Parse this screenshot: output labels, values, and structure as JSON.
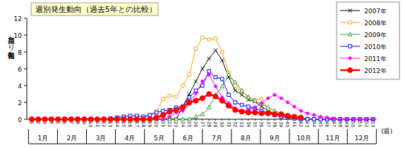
{
  "chart_data": {
    "type": "line",
    "title": "週別発生動向（過去5年との比較）",
    "y_label": "定点当たり報告数",
    "x_label": "(週)",
    "month_labels": [
      "1月",
      "2月",
      "3月",
      "4月",
      "5月",
      "6月",
      "7月",
      "8月",
      "9月",
      "10月",
      "11月",
      "12月"
    ],
    "categories": [
      "1",
      "2",
      "3",
      "4",
      "5",
      "6",
      "7",
      "8",
      "9",
      "10",
      "11",
      "12",
      "13",
      "14",
      "15",
      "16",
      "17",
      "18",
      "19",
      "20",
      "21",
      "22",
      "23",
      "24",
      "25",
      "26",
      "27",
      "28",
      "29",
      "30",
      "31",
      "32",
      "33",
      "34",
      "35",
      "36",
      "37",
      "38",
      "39",
      "40",
      "41",
      "42",
      "43",
      "44",
      "45",
      "46",
      "47",
      "48",
      "49",
      "50",
      "51",
      "52",
      "53"
    ],
    "ylim": [
      0,
      12
    ],
    "yticks": [
      0,
      2,
      4,
      6,
      8,
      10,
      12
    ],
    "grid": false,
    "legend": "upper right",
    "series": [
      {
        "name": "2007年",
        "color": "#000000",
        "marker": "x",
        "values": [
          0,
          0,
          0,
          0,
          0,
          0,
          0,
          0,
          0,
          0,
          0,
          0,
          0,
          0,
          0,
          0,
          0,
          0,
          0,
          0,
          0,
          0,
          0,
          1.5,
          3.0,
          4.5,
          6.0,
          7.2,
          8.2,
          7.0,
          5.0,
          3.4,
          2.9,
          2.3,
          2.1,
          1.5,
          1.0,
          0.6,
          0.4,
          0.2,
          0.1,
          0,
          0,
          0,
          0,
          0,
          0,
          0,
          0,
          0,
          0,
          0,
          0
        ]
      },
      {
        "name": "2008年",
        "color": "#ff9900",
        "marker": "circle-open",
        "values": [
          0,
          0,
          0,
          0,
          0,
          0,
          0,
          0,
          0,
          0,
          0,
          0,
          0,
          0,
          0,
          0,
          0,
          0.2,
          0.5,
          1.0,
          2.4,
          2.8,
          2.7,
          4.0,
          5.3,
          8.4,
          9.7,
          9.5,
          9.6,
          8.0,
          5.5,
          4.0,
          3.3,
          2.6,
          2.3,
          2.4,
          1.2,
          0.6,
          0.3,
          0.2,
          0.1,
          0,
          0,
          0,
          0,
          0,
          0,
          0,
          0,
          0,
          0,
          0,
          0
        ]
      },
      {
        "name": "2009年",
        "color": "#339933",
        "marker": "triangle-open",
        "values": [
          0,
          0,
          0,
          0,
          0,
          0,
          0,
          0,
          0,
          0,
          0,
          0,
          0,
          0,
          0,
          0,
          0,
          0,
          0,
          0,
          0,
          0,
          0,
          0,
          0,
          0.3,
          0.6,
          1.4,
          2.9,
          3.9,
          5.3,
          4.4,
          3.4,
          2.6,
          2.2,
          1.8,
          1.4,
          1.0,
          0.7,
          0.5,
          0.3,
          0.2,
          0.1,
          0,
          0,
          0,
          0,
          0,
          0,
          0,
          0,
          0,
          0
        ]
      },
      {
        "name": "2010年",
        "color": "#0000ff",
        "marker": "square-open",
        "values": [
          0,
          0,
          0,
          0,
          0,
          0,
          0,
          0,
          0,
          0,
          0,
          0,
          0.1,
          0.2,
          0.3,
          0.4,
          0.4,
          0.3,
          0.5,
          0.8,
          1.0,
          1.1,
          1.4,
          1.5,
          2.6,
          3.4,
          4.0,
          5.7,
          5.0,
          4.8,
          2.9,
          2.0,
          1.7,
          1.5,
          1.3,
          1.0,
          0.8,
          0.5,
          0.3,
          0.2,
          0.1,
          0,
          0,
          0,
          0,
          0,
          0,
          0,
          0,
          0,
          0,
          0,
          0
        ]
      },
      {
        "name": "2011年",
        "color": "#ff00ff",
        "marker": "diamond",
        "values": [
          0,
          0,
          0,
          0,
          0,
          0,
          0,
          0,
          0,
          0,
          0,
          0,
          0,
          0,
          0,
          0,
          0,
          0,
          0,
          0,
          0,
          0.3,
          0.8,
          1.0,
          1.8,
          3.1,
          4.5,
          5.3,
          3.9,
          2.6,
          1.9,
          1.3,
          1.0,
          1.1,
          1.4,
          1.9,
          2.5,
          2.9,
          2.5,
          2.0,
          1.5,
          1.0,
          0.7,
          0.5,
          0.3,
          0.2,
          0.1,
          0,
          0,
          0,
          0,
          0,
          0
        ]
      },
      {
        "name": "2012年",
        "color": "#ff0000",
        "marker": "circle",
        "values": [
          0,
          0,
          0,
          0,
          0,
          0,
          0,
          0,
          0,
          0,
          0,
          0,
          0,
          0,
          0,
          0,
          0,
          0,
          0,
          0.2,
          0.5,
          0.9,
          1.1,
          1.4,
          2.0,
          2.2,
          2.5,
          3.0,
          2.7,
          2.2,
          1.6,
          1.1,
          0.9,
          0.8,
          0.8,
          0.7,
          0.7,
          0.6,
          0.6,
          0.4,
          0.3,
          0.2,
          null,
          null,
          null,
          null,
          null,
          null,
          null,
          null,
          null,
          null,
          null
        ]
      }
    ]
  }
}
